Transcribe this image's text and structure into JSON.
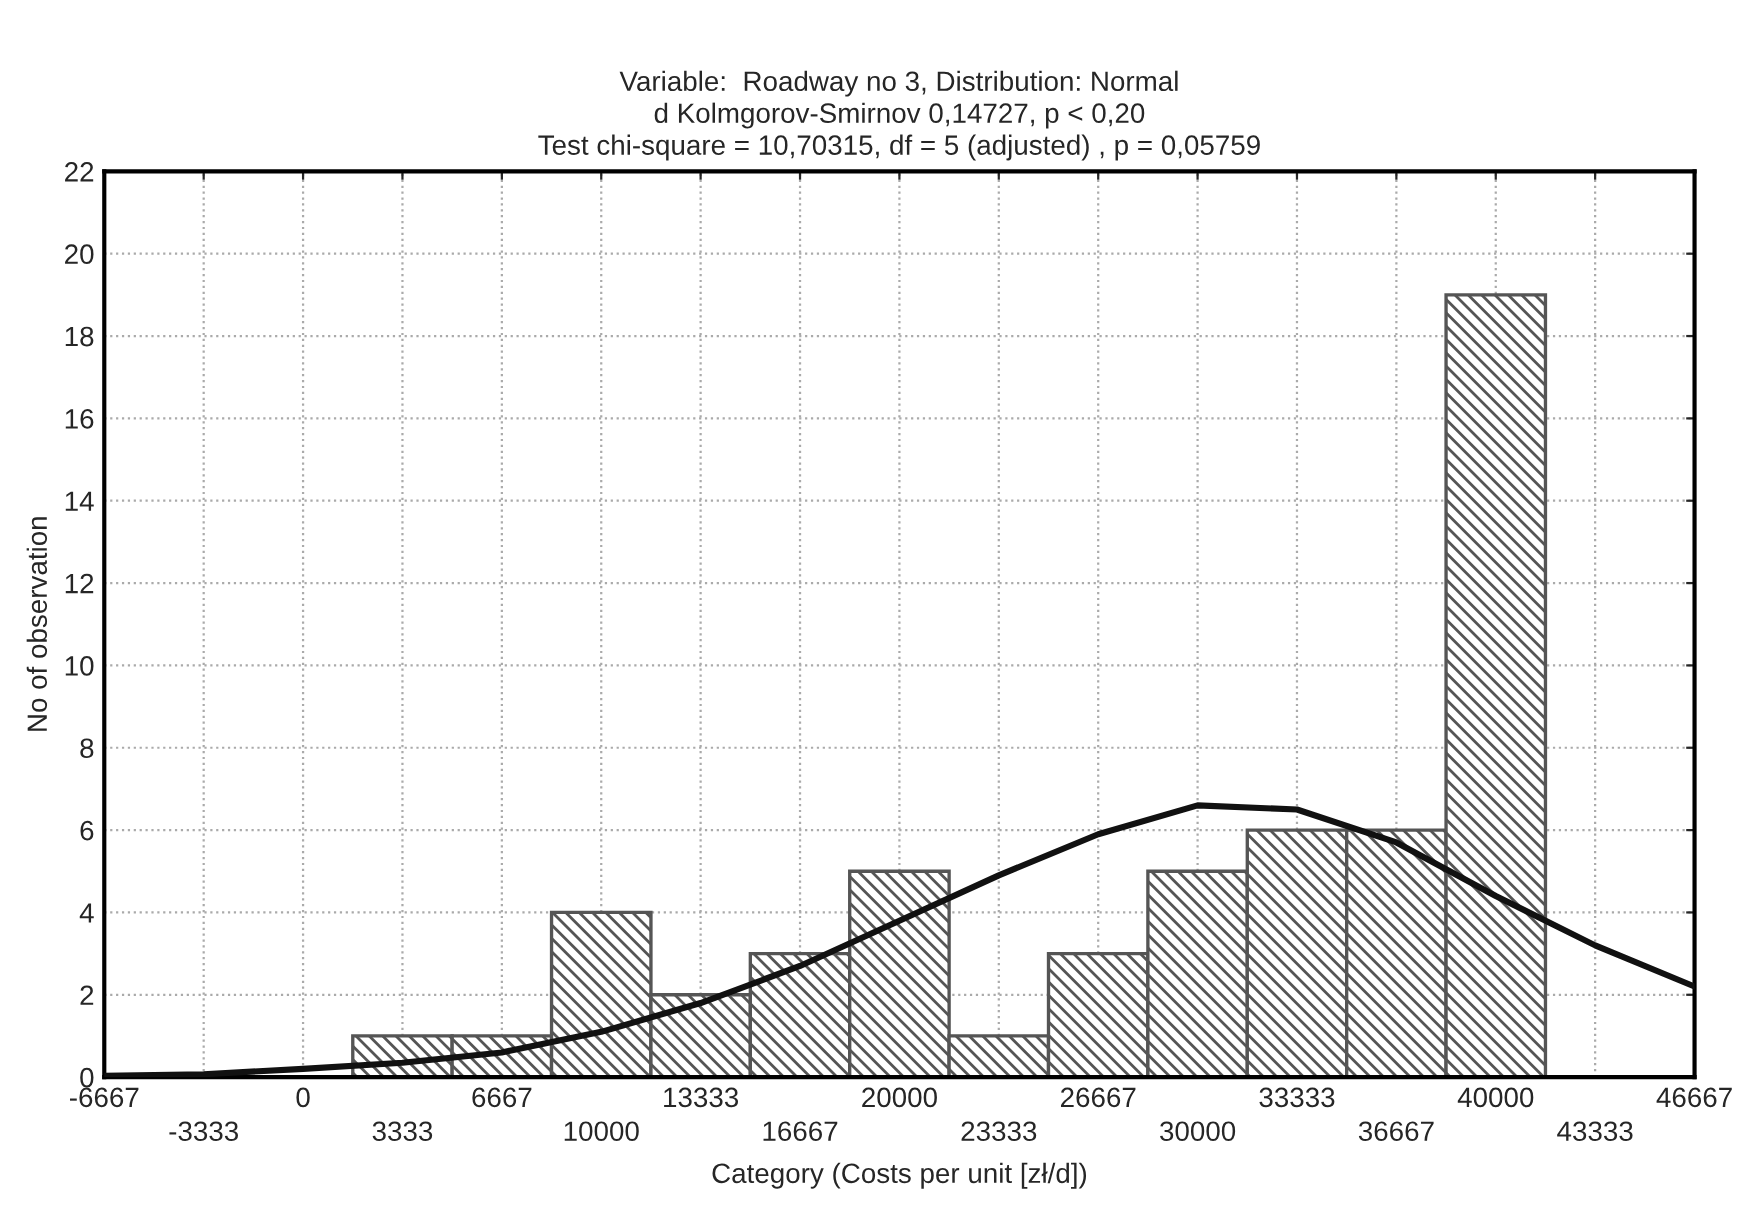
{
  "chart_data": {
    "type": "histogram",
    "title": "Variable:  Roadway no 3, Distribution: Normal\nd Kolmgorov-Smirnov 0,14727, p < 0,20\nTest chi-square = 10,70315, df = 5 (adjusted) , p = 0,05759",
    "xlabel": "Category (Costs per unit [zł/d])",
    "ylabel": "No of observation",
    "bins": [
      1667,
      5000,
      8333,
      11667,
      15000,
      18333,
      21667,
      25000,
      28333,
      31667,
      35000,
      38333,
      41667
    ],
    "values": [
      1,
      1,
      4,
      2,
      3,
      5,
      1,
      3,
      5,
      6,
      6,
      19
    ],
    "color": "#555555",
    "series": [
      {
        "type": "line",
        "color": "#111111",
        "x": [
          -6667,
          -3333,
          0,
          3333,
          6667,
          10000,
          13333,
          16667,
          20000,
          23333,
          26667,
          30000,
          33333,
          36667,
          40000,
          43333,
          46667
        ],
        "values": [
          0.03,
          0.07,
          0.2,
          0.35,
          0.6,
          1.1,
          1.8,
          2.7,
          3.8,
          4.9,
          5.9,
          6.6,
          6.5,
          5.7,
          4.4,
          3.2,
          2.2
        ]
      }
    ],
    "xlim": [
      -6667,
      46667
    ],
    "xticks": [
      -6667,
      0,
      6667,
      13333,
      20000,
      26667,
      33333,
      40000,
      46667
    ],
    "x2lim": [
      -6667,
      46667
    ],
    "x2ticks": [
      -3333,
      3333,
      10000,
      16667,
      23333,
      30000,
      36667,
      43333
    ],
    "ylim": [
      0,
      22
    ],
    "yticks": [
      0,
      2,
      4,
      6,
      8,
      10,
      12,
      14,
      16,
      18,
      20,
      22
    ],
    "grid": true
  }
}
